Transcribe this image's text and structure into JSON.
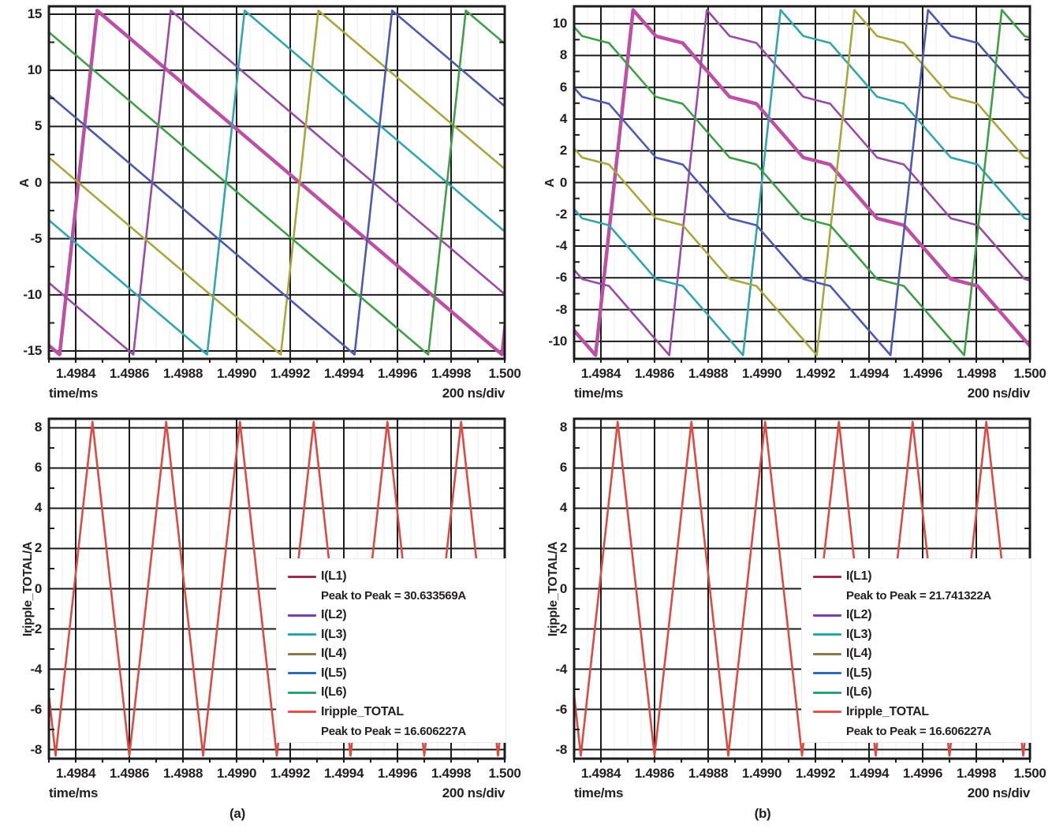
{
  "page": {
    "background": "#ffffff"
  },
  "text_color": "#231f20",
  "chart_data": [
    {
      "id": "phase-currents-uncoupled",
      "type": "line",
      "position": "top-left",
      "xlabel": "time/ms",
      "x_div_label": "200 ns/div",
      "ylabel": "A",
      "xlim": [
        1.4983,
        1.5
      ],
      "ylim": [
        -15.7,
        15.7
      ],
      "xtick_values": [
        1.4984,
        1.4986,
        1.4988,
        1.499,
        1.4992,
        1.4994,
        1.4996,
        1.4998,
        1.5
      ],
      "xtick_labels": [
        "1.4984",
        "1.4986",
        "1.4988",
        "1.4990",
        "1.4992",
        "1.4994",
        "1.4996",
        "1.4998",
        "1.500"
      ],
      "ytick_values": [
        -15,
        -10,
        -5,
        0,
        5,
        10,
        15
      ],
      "ytick_labels": [
        "-15",
        "-10",
        "-5",
        "0",
        "5",
        "10",
        "15"
      ],
      "grid": {
        "major_color": "#1b1b1d",
        "minor_color": "#ededf2",
        "minor_step_ms": 5e-05
      },
      "waveform": {
        "kind": "interleaved_sawtooth",
        "coupled": false,
        "phases": 6,
        "period_ms": 0.00165,
        "phase_spacing_ms": 0.000275,
        "rise_ms": 0.00014,
        "first_valley_ms": 1.49834,
        "peak_a": 15.32,
        "valley_a": -15.32
      },
      "series": [
        {
          "name": "I(L1)",
          "color": "#bd4fa4",
          "width": 4.5
        },
        {
          "name": "I(L2)",
          "color": "#9a4ba6",
          "width": 2.6
        },
        {
          "name": "I(L3)",
          "color": "#30a6ae",
          "width": 2.6
        },
        {
          "name": "I(L4)",
          "color": "#a8a73d",
          "width": 2.6
        },
        {
          "name": "I(L5)",
          "color": "#4c5ab0",
          "width": 2.6
        },
        {
          "name": "I(L6)",
          "color": "#3f9f46",
          "width": 2.6
        }
      ]
    },
    {
      "id": "phase-currents-coupled",
      "type": "line",
      "position": "top-right",
      "xlabel": "time/ms",
      "x_div_label": "200 ns/div",
      "ylabel": "A",
      "xlim": [
        1.4983,
        1.5
      ],
      "ylim": [
        -11.1,
        11.1
      ],
      "xtick_values": [
        1.4984,
        1.4986,
        1.4988,
        1.499,
        1.4992,
        1.4994,
        1.4996,
        1.4998,
        1.5
      ],
      "xtick_labels": [
        "1.4984",
        "1.4986",
        "1.4988",
        "1.4990",
        "1.4992",
        "1.4994",
        "1.4996",
        "1.4998",
        "1.500"
      ],
      "ytick_values": [
        -10,
        -8,
        -6,
        -4,
        -2,
        0,
        2,
        4,
        6,
        8,
        10
      ],
      "ytick_labels": [
        "-10",
        "-8",
        "-6",
        "-4",
        "-2",
        "0",
        "2",
        "4",
        "6",
        "8",
        "10"
      ],
      "grid": {
        "major_color": "#1b1b1d",
        "minor_color": "#ededf2",
        "minor_step_ms": 5e-05
      },
      "waveform": {
        "kind": "interleaved_sawtooth",
        "coupled": true,
        "phases": 6,
        "period_ms": 0.00165,
        "phase_spacing_ms": 0.000275,
        "rise_ms": 0.00014,
        "first_valley_ms": 1.49838,
        "peak_a": 10.87,
        "valley_a": -10.87,
        "shelf_half_ms": 5e-05,
        "shelf_drop_frac": 0.02
      },
      "series": [
        {
          "name": "I(L1)",
          "color": "#bd4fa4",
          "width": 4.5
        },
        {
          "name": "I(L2)",
          "color": "#9a4ba6",
          "width": 2.6
        },
        {
          "name": "I(L3)",
          "color": "#30a6ae",
          "width": 2.6
        },
        {
          "name": "I(L4)",
          "color": "#a8a73d",
          "width": 2.6
        },
        {
          "name": "I(L5)",
          "color": "#4c5ab0",
          "width": 2.6
        },
        {
          "name": "I(L6)",
          "color": "#3f9f46",
          "width": 2.6
        }
      ]
    },
    {
      "id": "total-ripple-uncoupled",
      "type": "line",
      "position": "bottom-left",
      "caption": "(a)",
      "xlabel": "time/ms",
      "x_div_label": "200 ns/div",
      "ylabel": "Iripple_TOTAL/A",
      "xlim": [
        1.4983,
        1.5
      ],
      "ylim": [
        -8.45,
        8.45
      ],
      "xtick_values": [
        1.4984,
        1.4986,
        1.4988,
        1.499,
        1.4992,
        1.4994,
        1.4996,
        1.4998,
        1.5
      ],
      "xtick_labels": [
        "1.4984",
        "1.4986",
        "1.4988",
        "1.4990",
        "1.4992",
        "1.4994",
        "1.4996",
        "1.4998",
        "1.500"
      ],
      "ytick_values": [
        -8,
        -6,
        -4,
        -2,
        0,
        2,
        4,
        6,
        8
      ],
      "ytick_labels": [
        "-8",
        "-6",
        "-4",
        "-2",
        "0",
        "2",
        "4",
        "6",
        "8"
      ],
      "grid": {
        "major_color": "#1b1b1d",
        "minor_color": "#ededf2",
        "minor_step_ms": 5e-05
      },
      "waveform": {
        "kind": "triangle",
        "period_ms": 0.000275,
        "first_valley_ms": 1.498325,
        "peak_a": 8.3,
        "valley_a": -8.3
      },
      "series": [
        {
          "name": "Iripple_TOTAL",
          "color": "#dc4a42",
          "width": 2.6
        }
      ],
      "legend": {
        "position": "right-center",
        "entries": [
          {
            "label": "I(L1)",
            "color": "#9c2a50",
            "sublabel": "Peak to Peak = 30.633569A"
          },
          {
            "label": "I(L2)",
            "color": "#7b3ea5"
          },
          {
            "label": "I(L3)",
            "color": "#29a6a9"
          },
          {
            "label": "I(L4)",
            "color": "#8a7a4a"
          },
          {
            "label": "I(L5)",
            "color": "#2d6cb3"
          },
          {
            "label": "I(L6)",
            "color": "#2aa276"
          },
          {
            "label": "Iripple_TOTAL",
            "color": "#e25248",
            "sublabel": "Peak to Peak = 16.606227A"
          }
        ]
      }
    },
    {
      "id": "total-ripple-coupled",
      "type": "line",
      "position": "bottom-right",
      "caption": "(b)",
      "xlabel": "time/ms",
      "x_div_label": "200 ns/div",
      "ylabel": "Iripple_TOTAL/A",
      "xlim": [
        1.4983,
        1.5
      ],
      "ylim": [
        -8.45,
        8.45
      ],
      "xtick_values": [
        1.4984,
        1.4986,
        1.4988,
        1.499,
        1.4992,
        1.4994,
        1.4996,
        1.4998,
        1.5
      ],
      "xtick_labels": [
        "1.4984",
        "1.4986",
        "1.4988",
        "1.4990",
        "1.4992",
        "1.4994",
        "1.4996",
        "1.4998",
        "1.500"
      ],
      "ytick_values": [
        -8,
        -6,
        -4,
        -2,
        0,
        2,
        4,
        6,
        8
      ],
      "ytick_labels": [
        "-8",
        "-6",
        "-4",
        "-2",
        "0",
        "2",
        "4",
        "6",
        "8"
      ],
      "grid": {
        "major_color": "#1b1b1d",
        "minor_color": "#ededf2",
        "minor_step_ms": 5e-05
      },
      "waveform": {
        "kind": "triangle",
        "period_ms": 0.000275,
        "first_valley_ms": 1.498325,
        "peak_a": 8.3,
        "valley_a": -8.3
      },
      "series": [
        {
          "name": "Iripple_TOTAL",
          "color": "#dc4a42",
          "width": 2.6
        }
      ],
      "legend": {
        "position": "right-center",
        "entries": [
          {
            "label": "I(L1)",
            "color": "#9c2a50",
            "sublabel": "Peak to Peak = 21.741322A"
          },
          {
            "label": "I(L2)",
            "color": "#7b3ea5"
          },
          {
            "label": "I(L3)",
            "color": "#29a6a9"
          },
          {
            "label": "I(L4)",
            "color": "#8a7a4a"
          },
          {
            "label": "I(L5)",
            "color": "#2d6cb3"
          },
          {
            "label": "I(L6)",
            "color": "#2aa276"
          },
          {
            "label": "Iripple_TOTAL",
            "color": "#e25248",
            "sublabel": "Peak to Peak = 16.606227A"
          }
        ]
      }
    }
  ]
}
